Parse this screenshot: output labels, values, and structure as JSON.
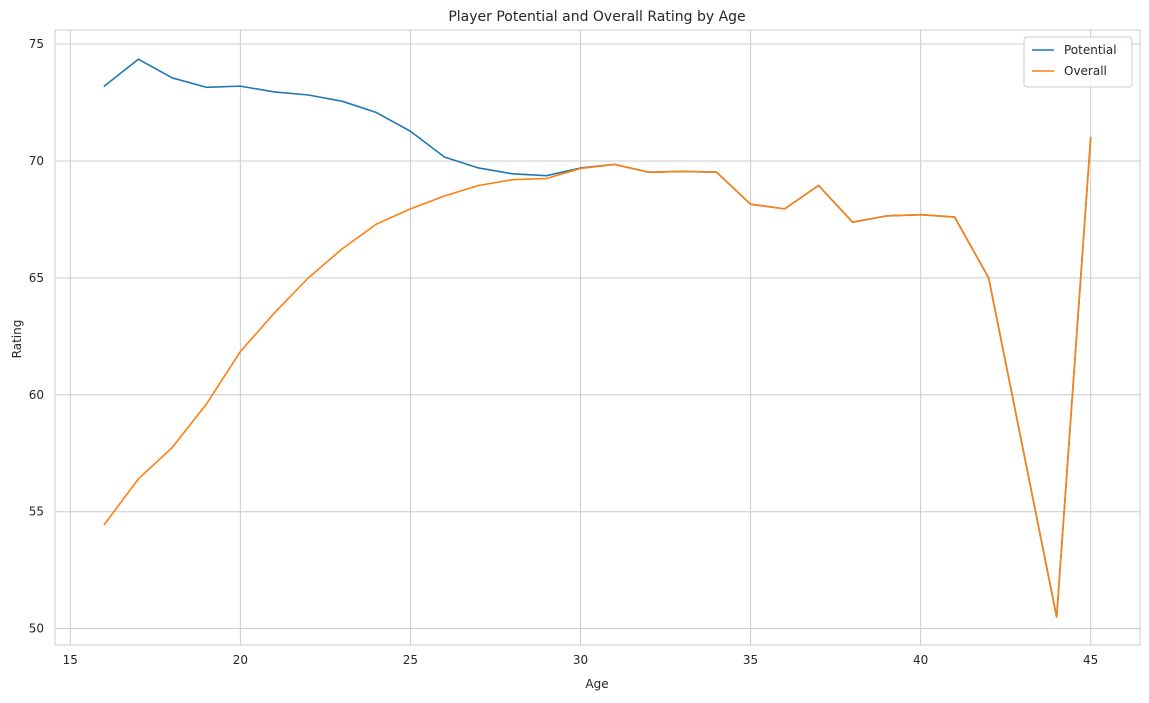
{
  "chart_data": {
    "type": "line",
    "title": "Player Potential and Overall Rating by Age",
    "xlabel": "Age",
    "ylabel": "Rating",
    "xlim": [
      14.55,
      46.45
    ],
    "ylim": [
      49.3,
      75.6
    ],
    "xticks": [
      15,
      20,
      25,
      30,
      35,
      40,
      45
    ],
    "yticks": [
      50,
      55,
      60,
      65,
      70,
      75
    ],
    "grid": true,
    "legend_position": "top-right",
    "x": [
      16,
      17,
      18,
      19,
      20,
      21,
      22,
      23,
      24,
      25,
      26,
      27,
      28,
      29,
      30,
      31,
      32,
      33,
      34,
      35,
      36,
      37,
      38,
      39,
      40,
      41,
      42,
      44,
      45
    ],
    "series": [
      {
        "name": "Potential",
        "color": "#1f77b4",
        "values": [
          73.2,
          74.35,
          73.55,
          73.15,
          73.2,
          72.95,
          72.82,
          72.55,
          72.07,
          71.27,
          70.17,
          69.7,
          69.45,
          69.37,
          69.7,
          69.85,
          69.52,
          69.55,
          69.52,
          68.15,
          67.95,
          68.95,
          67.38,
          67.65,
          67.7,
          67.6,
          65.0,
          50.5,
          71.0
        ]
      },
      {
        "name": "Overall",
        "color": "#ff7f0e",
        "values": [
          54.45,
          56.4,
          57.75,
          59.6,
          61.85,
          63.5,
          65.0,
          66.25,
          67.3,
          67.95,
          68.5,
          68.95,
          69.2,
          69.25,
          69.68,
          69.85,
          69.52,
          69.55,
          69.52,
          68.15,
          67.95,
          68.95,
          67.38,
          67.65,
          67.7,
          67.6,
          65.0,
          50.5,
          71.0
        ]
      }
    ]
  }
}
